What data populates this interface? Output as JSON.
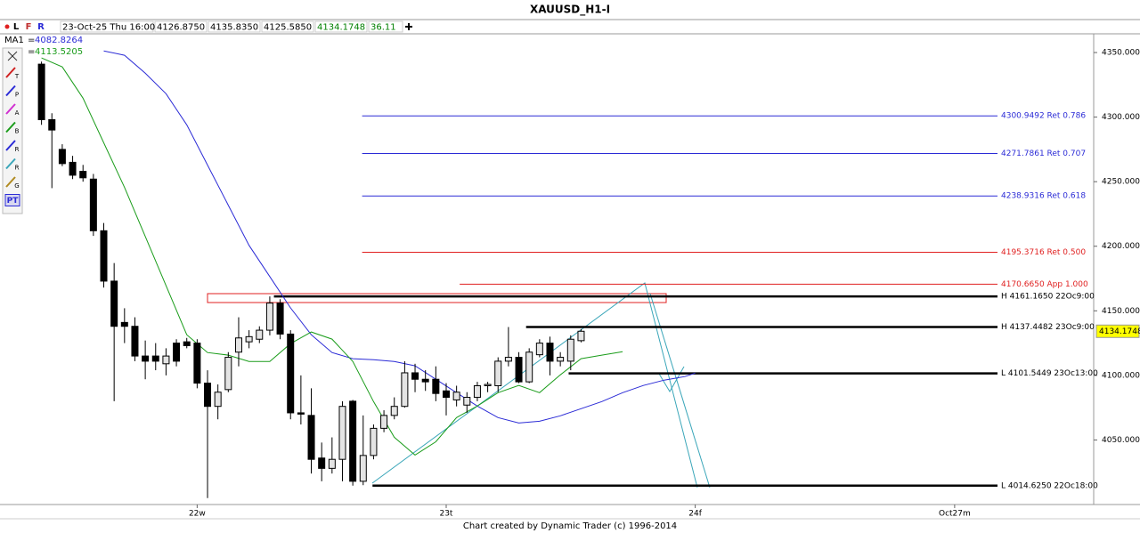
{
  "header": {
    "title": "XAUUSD_H1-I",
    "buttons": [
      "L",
      "F",
      "R"
    ],
    "fields": [
      "23-Oct-25 Thu 16:00",
      "4126.8750",
      "4135.8350",
      "4125.5850",
      "4134.1748",
      "36.11"
    ]
  },
  "toolbar": [
    "T",
    "P",
    "A",
    "B",
    "R",
    "R",
    "G",
    "PT"
  ],
  "footer": "Chart created by Dynamic Trader  (c) 1996-2014",
  "chart_data": {
    "type": "candlestick",
    "x": [
      -15,
      -14,
      -13,
      -12,
      -11,
      -10,
      -9,
      -8,
      -7,
      -6,
      -5,
      -4,
      -3,
      -2,
      -1,
      0,
      1,
      2,
      3,
      4,
      5,
      6,
      7,
      8,
      9,
      10,
      11,
      12,
      13,
      14,
      15,
      16,
      17,
      18,
      19,
      20,
      21,
      22,
      23,
      24,
      25,
      26,
      27,
      28,
      29,
      30,
      31,
      32,
      33,
      34,
      35,
      36,
      37
    ],
    "open": [
      4341,
      4298,
      4275,
      4265,
      4258,
      4252,
      4212,
      4173,
      4141,
      4138,
      4115,
      4115,
      4109,
      4125,
      4126,
      4125,
      4094,
      4076,
      4089,
      4118,
      4126,
      4128,
      4135,
      4156,
      4132,
      4071,
      4069,
      4036,
      4028,
      4035,
      4080,
      4018,
      4038,
      4059,
      4069,
      4076,
      4102,
      4097,
      4097,
      4088,
      4081,
      4077,
      4083,
      4092,
      4092,
      4111,
      4114,
      4095,
      4116,
      4125,
      4111,
      4111,
      4126.875
    ],
    "high": [
      4343,
      4303,
      4279,
      4270,
      4263,
      4256,
      4218,
      4187,
      4152,
      4145,
      4127,
      4125,
      4121,
      4128,
      4129,
      4128,
      4104,
      4093,
      4118,
      4145,
      4135,
      4138,
      4161.165,
      4159,
      4135,
      4100,
      4090,
      4048,
      4052,
      4080,
      4081,
      4069,
      4062,
      4073,
      4083,
      4111,
      4109,
      4104,
      4107,
      4094,
      4092,
      4087,
      4095,
      4095,
      4114,
      4137.4482,
      4118,
      4121,
      4128,
      4130,
      4118,
      4131,
      4135.835
    ],
    "low": [
      4294,
      4245,
      4262,
      4252,
      4250,
      4208,
      4168,
      4080,
      4125,
      4111,
      4097,
      4104,
      4100,
      4107,
      4121,
      4090,
      4005,
      4066,
      4087,
      4107,
      4121,
      4125,
      4131,
      4128,
      4066,
      4062,
      4024,
      4018,
      4024,
      4018,
      4014.625,
      4015,
      4035,
      4056,
      4066,
      4075,
      4087,
      4088,
      4080,
      4069,
      4076,
      4071,
      4080,
      4087,
      4087,
      4107,
      4094,
      4094,
      4114,
      4100,
      4107,
      4104,
      4125.585
    ],
    "close": [
      4298,
      4290,
      4264,
      4255,
      4253,
      4212,
      4173,
      4138,
      4138,
      4115,
      4111,
      4111,
      4115,
      4111,
      4123,
      4094,
      4076,
      4087,
      4114,
      4129,
      4130,
      4135,
      4156,
      4132,
      4071,
      4070,
      4035,
      4028,
      4035,
      4076,
      4018,
      4038,
      4059,
      4069,
      4076,
      4102,
      4097,
      4095,
      4086,
      4083,
      4087,
      4083,
      4092,
      4093,
      4111,
      4114,
      4095,
      4118,
      4125,
      4111,
      4114,
      4128,
      4134.1748
    ],
    "up_color": "#e4e4e4",
    "down_color": "#000000",
    "legend_sign": "=",
    "series": [
      {
        "name": "MA1",
        "color": "#2b2bd6",
        "last": 4082.8264,
        "x": [
          -9,
          -7,
          -5,
          -3,
          -1,
          1,
          3,
          5,
          7,
          9,
          11,
          13,
          15,
          17,
          19,
          21,
          23,
          25,
          27,
          29,
          31,
          33,
          35,
          37,
          39,
          41,
          43,
          45,
          47,
          48
        ],
        "values": [
          4351.3,
          4347.9,
          4334.0,
          4318.1,
          4294.0,
          4262.9,
          4231.8,
          4200.7,
          4176.5,
          4152.3,
          4131.5,
          4117.7,
          4112.9,
          4112.2,
          4110.8,
          4107.4,
          4097.0,
          4086.6,
          4076.3,
          4067.3,
          4063.1,
          4064.5,
          4068.7,
          4074.2,
          4079.7,
          4086.6,
          4092.2,
          4096.3,
          4099.1,
          4101.8
        ]
      },
      {
        "color": "#1a9c1a",
        "last": 4113.5205,
        "x": [
          -15,
          -13,
          -11,
          -9,
          -7,
          -5,
          -3,
          -1,
          1,
          3,
          5,
          7,
          9,
          11,
          13,
          15,
          17,
          19,
          21,
          23,
          25,
          27,
          29,
          31,
          33,
          35,
          37,
          39,
          41
        ],
        "values": [
          4345.8,
          4338.9,
          4314.7,
          4280.1,
          4245.6,
          4207.6,
          4169.6,
          4131.5,
          4117.7,
          4115.7,
          4110.8,
          4110.8,
          4124.6,
          4133.6,
          4128.1,
          4110.8,
          4079.7,
          4052.1,
          4038.3,
          4048.6,
          4067.3,
          4076.3,
          4086.6,
          4092.2,
          4086.6,
          4100.4,
          4112.9,
          4115.7,
          4118.4
        ]
      }
    ],
    "levels": [
      {
        "value": 4300.9492,
        "label": "4300.9492 Ret 0.786",
        "color": "#2b2bd6",
        "start": 15.9
      },
      {
        "value": 4271.7861,
        "label": "4271.7861 Ret 0.707",
        "color": "#2b2bd6",
        "start": 15.9
      },
      {
        "value": 4238.9316,
        "label": "4238.9316 Ret 0.618",
        "color": "#2b2bd6",
        "start": 15.9
      },
      {
        "value": 4195.3716,
        "label": "4195.3716 Ret 0.500",
        "color": "#e02020",
        "start": 15.9
      },
      {
        "value": 4170.665,
        "label": "4170.6650 App 1.000",
        "color": "#e02020",
        "start": 25.3
      },
      {
        "value": 4161.165,
        "label": "H 4161.1650 22Oc9:00",
        "color": "#000000",
        "start": 7.4
      },
      {
        "value": 4137.4482,
        "label": "H 4137.4482 23Oc9:00",
        "color": "#000000",
        "start": 31.7
      },
      {
        "value": 4101.5449,
        "label": "L 4101.5449 23Oc13:00",
        "color": "#000000",
        "start": 35.8
      },
      {
        "value": 4014.625,
        "label": "L 4014.6250 22Oc18:00",
        "color": "#000000",
        "start": 16.9
      }
    ],
    "xlim": [
      -19,
      86.4
    ],
    "xticks": [
      {
        "value": 0,
        "label": "22w"
      },
      {
        "value": 24,
        "label": "23t"
      },
      {
        "value": 48,
        "label": "24f"
      },
      {
        "value": 73,
        "label": "Oct27m"
      }
    ],
    "ylim": [
      4000,
      4364.5
    ],
    "yticks": [
      {
        "value": 4050,
        "label": "4050.0000"
      },
      {
        "value": 4100,
        "label": "4100.0000"
      },
      {
        "value": 4150,
        "label": "4150.0000"
      },
      {
        "value": 4200,
        "label": "4200.0000"
      },
      {
        "value": 4250,
        "label": "4250.0000"
      },
      {
        "value": 4300,
        "label": "4300.0000"
      },
      {
        "value": 4350,
        "label": "4350.0000"
      }
    ]
  }
}
